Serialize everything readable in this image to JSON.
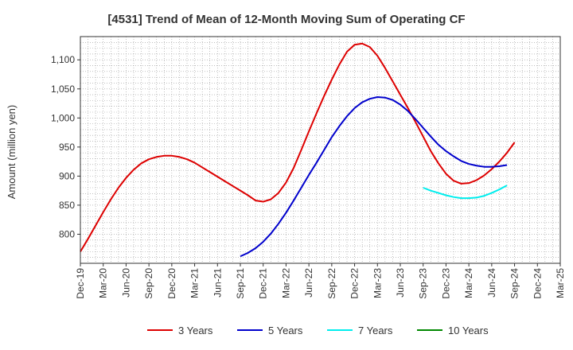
{
  "chart_data": {
    "type": "line",
    "title": "[4531]  Trend of Mean of 12-Month Moving Sum of Operating CF",
    "xlabel": "",
    "ylabel": "Amount (million yen)",
    "ylim": [
      750,
      1140
    ],
    "yticks": [
      800,
      850,
      900,
      950,
      1000,
      1050,
      1100
    ],
    "ytick_labels": [
      "800",
      "850",
      "900",
      "950",
      "1,000",
      "1,050",
      "1,100"
    ],
    "x_start": "Dec-19",
    "x_ticks": [
      "Dec-19",
      "Mar-20",
      "Jun-20",
      "Sep-20",
      "Dec-20",
      "Mar-21",
      "Jun-21",
      "Sep-21",
      "Dec-21",
      "Mar-22",
      "Jun-22",
      "Sep-22",
      "Dec-22",
      "Mar-23",
      "Jun-23",
      "Sep-23",
      "Dec-23",
      "Mar-24",
      "Jun-24",
      "Sep-24",
      "Dec-24",
      "Mar-25"
    ],
    "x_range_months": [
      0,
      63
    ],
    "grid": true,
    "legend_position": "bottom",
    "series": [
      {
        "name": "3 Years",
        "color": "#dd0000",
        "start_month": 0,
        "values": [
          770,
          792,
          815,
          838,
          860,
          880,
          897,
          911,
          922,
          929,
          933,
          935,
          935,
          933,
          929,
          923,
          915,
          907,
          899,
          891,
          883,
          875,
          867,
          858,
          856,
          860,
          871,
          889,
          914,
          945,
          977,
          1008,
          1038,
          1066,
          1092,
          1114,
          1126,
          1128,
          1122,
          1107,
          1086,
          1063,
          1040,
          1017,
          993,
          968,
          943,
          922,
          904,
          892,
          887,
          888,
          893,
          901,
          912,
          925,
          940,
          958
        ]
      },
      {
        "name": "5 Years",
        "color": "#0000cc",
        "start_month": 21,
        "values": [
          762,
          768,
          776,
          787,
          801,
          818,
          837,
          858,
          880,
          902,
          923,
          945,
          967,
          986,
          1003,
          1017,
          1027,
          1033,
          1036,
          1035,
          1031,
          1023,
          1012,
          998,
          983,
          968,
          954,
          943,
          934,
          926,
          921,
          918,
          916,
          916,
          917,
          919
        ]
      },
      {
        "name": "7 Years",
        "color": "#00eeee",
        "start_month": 45,
        "values": [
          880,
          875,
          871,
          867,
          864,
          862,
          862,
          863,
          866,
          871,
          877,
          884
        ]
      },
      {
        "name": "10 Years",
        "color": "#008800",
        "start_month": null,
        "values": []
      }
    ]
  }
}
